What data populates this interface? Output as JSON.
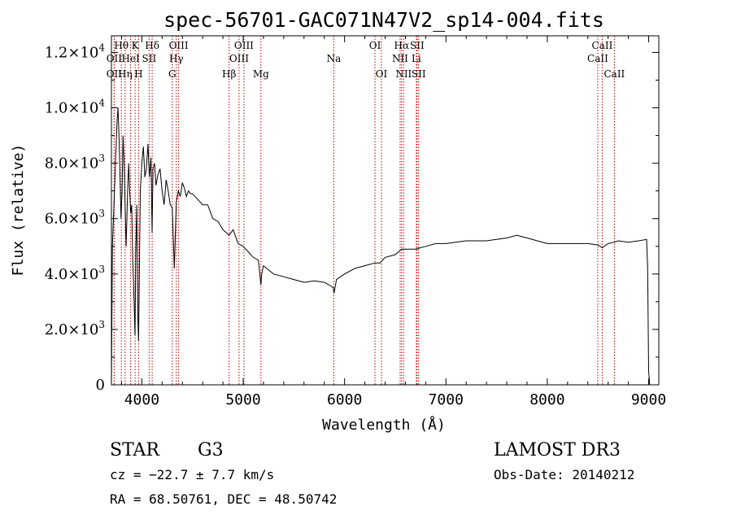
{
  "chart_data": {
    "type": "line",
    "title": "spec-56701-GAC071N47V2_sp14-004.fits",
    "xlabel": "Wavelength (Å)",
    "ylabel": "Flux (relative)",
    "xlim": [
      3700,
      9100
    ],
    "ylim": [
      0,
      12600
    ],
    "x_ticks": [
      4000,
      5000,
      6000,
      7000,
      8000,
      9000
    ],
    "x_tick_labels": [
      "4000",
      "5000",
      "6000",
      "7000",
      "8000",
      "9000"
    ],
    "y_ticks": [
      0,
      2000,
      4000,
      6000,
      8000,
      10000,
      12000
    ],
    "y_tick_labels": [
      {
        "mant": "0",
        "exp": ""
      },
      {
        "mant": "2.0×10",
        "exp": "3"
      },
      {
        "mant": "4.0×10",
        "exp": "3"
      },
      {
        "mant": "6.0×10",
        "exp": "3"
      },
      {
        "mant": "8.0×10",
        "exp": "3"
      },
      {
        "mant": "1.0×10",
        "exp": "4"
      },
      {
        "mant": "1.2×10",
        "exp": "4"
      }
    ],
    "spectrum": {
      "name": "flux",
      "x": [
        3700,
        3710,
        3720,
        3735,
        3745,
        3755,
        3765,
        3775,
        3785,
        3795,
        3805,
        3815,
        3825,
        3835,
        3845,
        3860,
        3870,
        3880,
        3890,
        3900,
        3910,
        3920,
        3933,
        3940,
        3950,
        3960,
        3968,
        3975,
        3985,
        4000,
        4015,
        4030,
        4045,
        4060,
        4075,
        4090,
        4101,
        4110,
        4125,
        4140,
        4160,
        4180,
        4200,
        4220,
        4240,
        4260,
        4280,
        4300,
        4320,
        4340,
        4360,
        4380,
        4400,
        4420,
        4440,
        4460,
        4480,
        4500,
        4550,
        4600,
        4650,
        4700,
        4750,
        4800,
        4861,
        4900,
        4950,
        5000,
        5050,
        5100,
        5150,
        5175,
        5183,
        5200,
        5300,
        5400,
        5500,
        5600,
        5700,
        5800,
        5850,
        5890,
        5896,
        5920,
        6000,
        6100,
        6200,
        6300,
        6350,
        6400,
        6500,
        6563,
        6600,
        6700,
        6800,
        6900,
        7000,
        7200,
        7400,
        7600,
        7700,
        7800,
        8000,
        8200,
        8400,
        8498,
        8542,
        8600,
        8662,
        8700,
        8800,
        8900,
        8980,
        8990,
        9000,
        9010
      ],
      "y": [
        0,
        5000,
        6000,
        7500,
        8500,
        9500,
        10000,
        9000,
        7500,
        6000,
        7000,
        9000,
        8000,
        6500,
        5000,
        7000,
        8000,
        7000,
        6200,
        6500,
        4500,
        3500,
        1800,
        4800,
        6500,
        2500,
        1600,
        4000,
        7000,
        8000,
        8600,
        7500,
        7800,
        8700,
        7500,
        8200,
        5500,
        7800,
        8000,
        7200,
        7600,
        7800,
        7000,
        6500,
        7400,
        7000,
        6500,
        6400,
        4200,
        6600,
        7000,
        6800,
        7300,
        7100,
        6800,
        7000,
        6900,
        6900,
        6700,
        6500,
        6500,
        6000,
        5900,
        5600,
        5400,
        5600,
        5100,
        5000,
        4800,
        4600,
        4500,
        3600,
        4000,
        4300,
        4000,
        3900,
        3800,
        3700,
        3750,
        3700,
        3600,
        3500,
        3300,
        3800,
        4000,
        4200,
        4300,
        4400,
        4400,
        4600,
        4700,
        4900,
        4900,
        4900,
        5000,
        5100,
        5100,
        5200,
        5200,
        5300,
        5400,
        5300,
        5100,
        5100,
        5100,
        5050,
        4950,
        5100,
        5150,
        5200,
        5150,
        5200,
        5250,
        4200,
        500,
        0
      ]
    },
    "line_markers": [
      {
        "name": "OII",
        "x": 3727,
        "row": 2
      },
      {
        "name": "Hθ",
        "x": 3798,
        "row": 1
      },
      {
        "name": "OII",
        "x": 3727,
        "row": 1.5
      },
      {
        "name": "Hη",
        "x": 3835,
        "row": 2
      },
      {
        "name": "HeI",
        "x": 3889,
        "row": 1.5
      },
      {
        "name": "K",
        "x": 3934,
        "row": 1
      },
      {
        "name": "H",
        "x": 3968,
        "row": 2
      },
      {
        "name": "SII",
        "x": 4072,
        "row": 1.5
      },
      {
        "name": "Hδ",
        "x": 4102,
        "row": 1
      },
      {
        "name": "G",
        "x": 4300,
        "row": 2
      },
      {
        "name": "OIII",
        "x": 4363,
        "row": 1
      },
      {
        "name": "Hγ",
        "x": 4340,
        "row": 1.5
      },
      {
        "name": "Hβ",
        "x": 4861,
        "row": 2
      },
      {
        "name": "OIII",
        "x": 4959,
        "row": 1.5
      },
      {
        "name": "OIII",
        "x": 5007,
        "row": 1
      },
      {
        "name": "Mg",
        "x": 5175,
        "row": 2
      },
      {
        "name": "Na",
        "x": 5894,
        "row": 1.5
      },
      {
        "name": "OI",
        "x": 6300,
        "row": 1
      },
      {
        "name": "OI",
        "x": 6364,
        "row": 2
      },
      {
        "name": "NII",
        "x": 6548,
        "row": 1.5
      },
      {
        "name": "NII",
        "x": 6583,
        "row": 2
      },
      {
        "name": "Hα",
        "x": 6563,
        "row": 1
      },
      {
        "name": "Li",
        "x": 6708,
        "row": 1.5
      },
      {
        "name": "SII",
        "x": 6716,
        "row": 1
      },
      {
        "name": "SII",
        "x": 6731,
        "row": 2
      },
      {
        "name": "CaII",
        "x": 8498,
        "row": 1.5
      },
      {
        "name": "CaII",
        "x": 8542,
        "row": 1
      },
      {
        "name": "CaII",
        "x": 8662,
        "row": 2
      }
    ]
  },
  "info": {
    "class": "STAR",
    "subclass": "G3",
    "survey": "LAMOST DR3",
    "cz": "cz = −22.7 ± 7.7 km/s",
    "obs_date": "Obs-Date: 20140212",
    "coords": "RA =  68.50761, DEC =  48.50742"
  }
}
